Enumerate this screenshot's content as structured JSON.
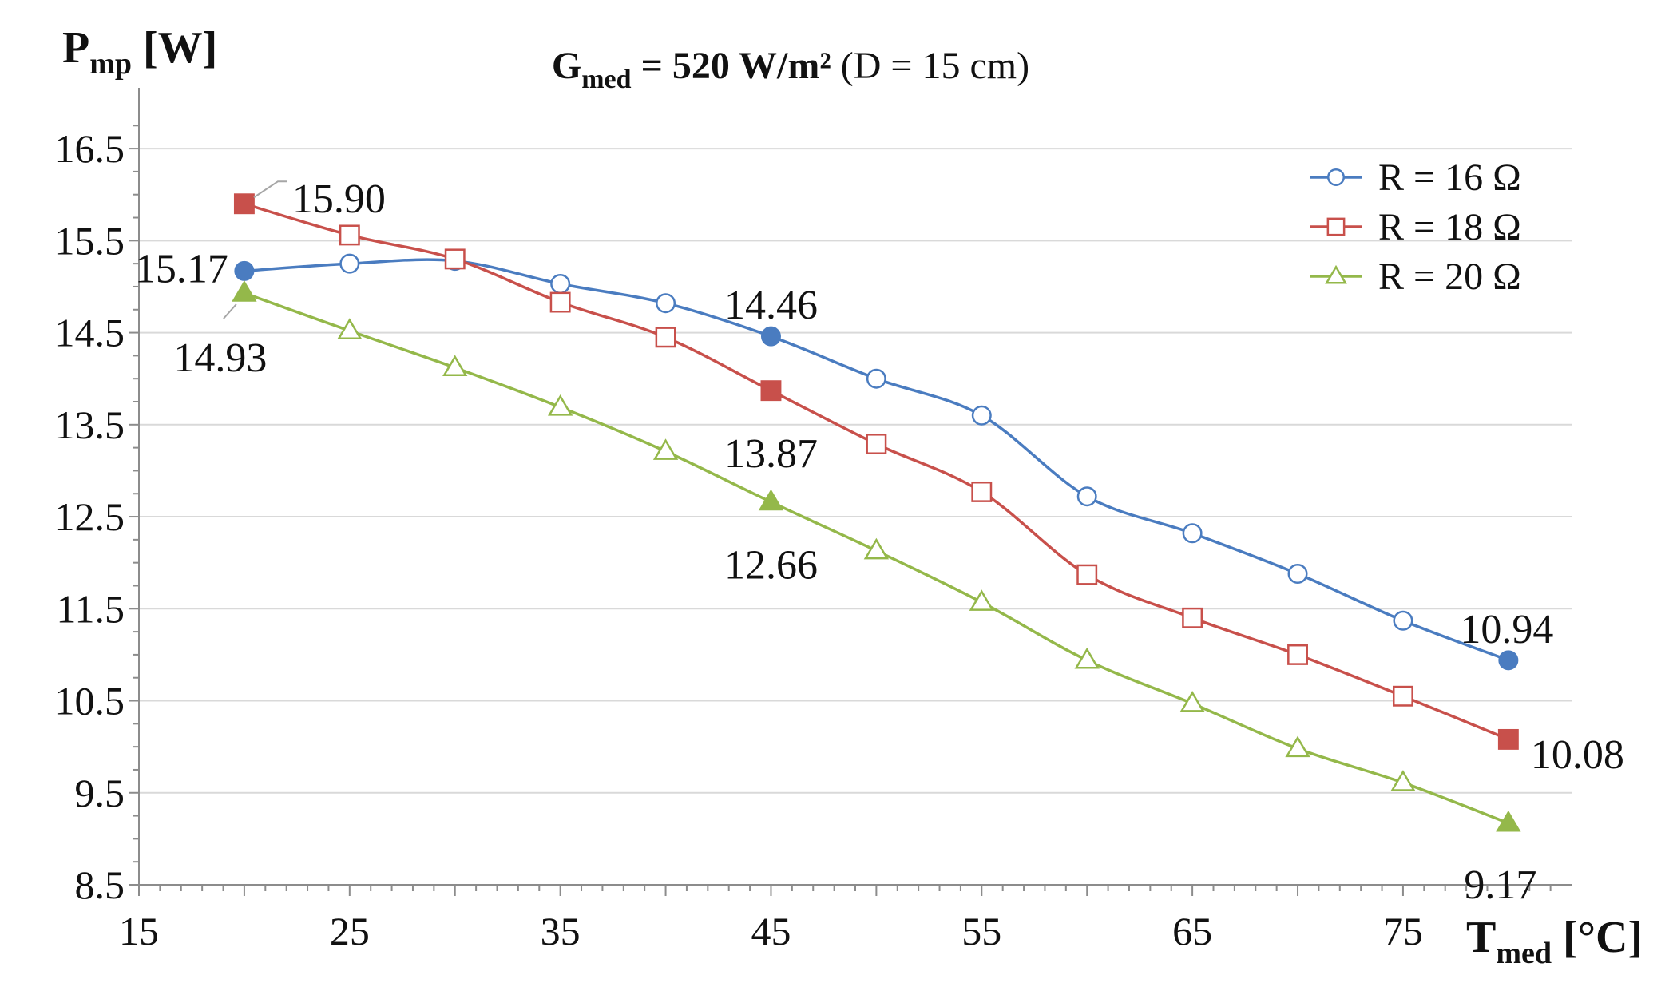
{
  "chart_data": {
    "type": "line",
    "title": {
      "main": "G",
      "sub": "med",
      "bold_rest": " = 520 W/m²",
      "rest": " (D = 15 cm)"
    },
    "ylabel": {
      "main": "P",
      "sub": "mp",
      "rest": " [W]"
    },
    "xlabel": {
      "main": "T",
      "sub": "med",
      "rest": " [°C]"
    },
    "xlim": [
      15,
      83
    ],
    "ylim": [
      8.5,
      16.9
    ],
    "x_ticks": [
      "15",
      "25",
      "35",
      "45",
      "55",
      "65",
      "75"
    ],
    "y_ticks": [
      "16.5",
      "15.5",
      "14.5",
      "13.5",
      "12.5",
      "11.5",
      "10.5",
      "9.5",
      "8.5"
    ],
    "grid": true,
    "legend_position": "top-right",
    "x": [
      20,
      25,
      30,
      35,
      40,
      45,
      50,
      55,
      60,
      65,
      70,
      75,
      80
    ],
    "series": [
      {
        "name": "R = 16 Ω",
        "color": "#4a7cc0",
        "marker": "circle",
        "values": [
          15.17,
          15.25,
          15.28,
          15.03,
          14.82,
          14.46,
          14.0,
          13.6,
          12.72,
          12.32,
          11.88,
          11.37,
          10.94
        ],
        "highlighted_indices": [
          0,
          5,
          12
        ]
      },
      {
        "name": "R = 18 Ω",
        "color": "#c8504b",
        "marker": "square",
        "values": [
          15.9,
          15.56,
          15.3,
          14.83,
          14.45,
          13.87,
          13.29,
          12.77,
          11.87,
          11.4,
          11.0,
          10.55,
          10.08
        ],
        "highlighted_indices": [
          0,
          5,
          12
        ]
      },
      {
        "name": "R = 20 Ω",
        "color": "#94b84a",
        "marker": "triangle",
        "values": [
          14.93,
          14.52,
          14.12,
          13.69,
          13.21,
          12.66,
          12.13,
          11.57,
          10.94,
          10.47,
          9.98,
          9.61,
          9.17
        ],
        "highlighted_indices": [
          0,
          5,
          12
        ]
      }
    ],
    "annotations": [
      {
        "text": "15.90"
      },
      {
        "text": "15.17"
      },
      {
        "text": "14.93"
      },
      {
        "text": "14.46"
      },
      {
        "text": "13.87"
      },
      {
        "text": "12.66"
      },
      {
        "text": "10.94"
      },
      {
        "text": "10.08"
      },
      {
        "text": "9.17"
      }
    ]
  }
}
